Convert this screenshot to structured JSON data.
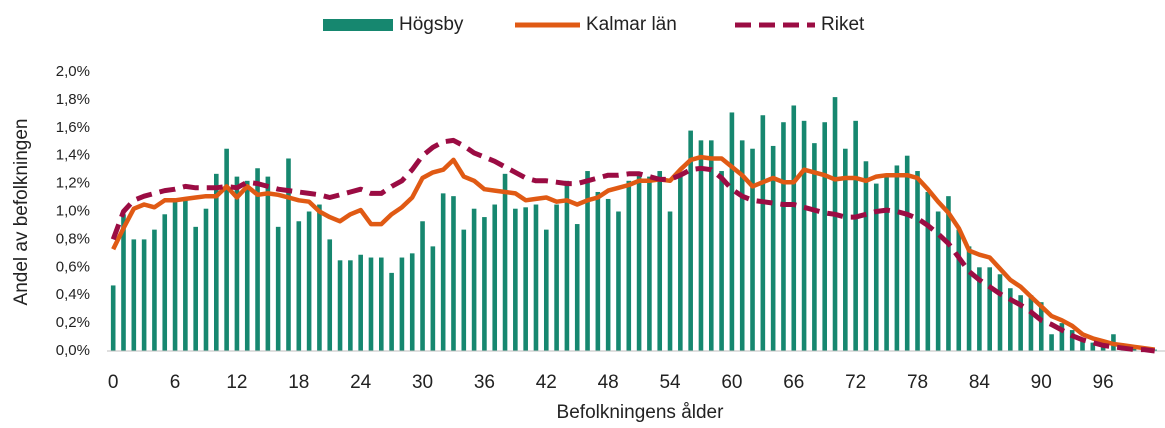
{
  "chart_data": {
    "type": "bar",
    "xlabel": "Befolkningens ålder",
    "ylabel": "Andel av befolkningen",
    "x": [
      0,
      1,
      2,
      3,
      4,
      5,
      6,
      7,
      8,
      9,
      10,
      11,
      12,
      13,
      14,
      15,
      16,
      17,
      18,
      19,
      20,
      21,
      22,
      23,
      24,
      25,
      26,
      27,
      28,
      29,
      30,
      31,
      32,
      33,
      34,
      35,
      36,
      37,
      38,
      39,
      40,
      41,
      42,
      43,
      44,
      45,
      46,
      47,
      48,
      49,
      50,
      51,
      52,
      53,
      54,
      55,
      56,
      57,
      58,
      59,
      60,
      61,
      62,
      63,
      64,
      65,
      66,
      67,
      68,
      69,
      70,
      71,
      72,
      73,
      74,
      75,
      76,
      77,
      78,
      79,
      80,
      81,
      82,
      83,
      84,
      85,
      86,
      87,
      88,
      89,
      90,
      91,
      92,
      93,
      94,
      95,
      96,
      97,
      98,
      99,
      100,
      101
    ],
    "xlim": [
      -0.6,
      102
    ],
    "xticks": [
      0,
      6,
      12,
      18,
      24,
      30,
      36,
      42,
      48,
      54,
      60,
      66,
      72,
      78,
      84,
      90,
      96
    ],
    "ylim": [
      0,
      2.0
    ],
    "yticks": [
      {
        "value": 0,
        "label": "0,0%"
      },
      {
        "value": 0.2,
        "label": "0,2%"
      },
      {
        "value": 0.4,
        "label": "0,4%"
      },
      {
        "value": 0.6,
        "label": "0,6%"
      },
      {
        "value": 0.8,
        "label": "0,8%"
      },
      {
        "value": 1.0,
        "label": "1,0%"
      },
      {
        "value": 1.2,
        "label": "1,2%"
      },
      {
        "value": 1.4,
        "label": "1,4%"
      },
      {
        "value": 1.6,
        "label": "1,6%"
      },
      {
        "value": 1.8,
        "label": "1,8%"
      },
      {
        "value": 2.0,
        "label": "2,0%"
      }
    ],
    "grid": false,
    "legend": "top",
    "series": [
      {
        "name": "Högsby",
        "type": "bar",
        "color": "#16876f",
        "values": [
          0.47,
          0.98,
          0.8,
          0.8,
          0.87,
          0.98,
          1.07,
          1.1,
          0.89,
          1.02,
          1.27,
          1.45,
          1.25,
          1.22,
          1.31,
          1.25,
          0.89,
          1.38,
          0.93,
          1.0,
          1.05,
          0.8,
          0.65,
          0.65,
          0.69,
          0.67,
          0.67,
          0.56,
          0.67,
          0.7,
          0.93,
          0.75,
          1.13,
          1.11,
          0.87,
          1.02,
          0.96,
          1.05,
          1.27,
          1.02,
          1.03,
          1.05,
          0.87,
          1.05,
          1.22,
          0.91,
          1.29,
          1.14,
          1.09,
          1.0,
          1.22,
          1.27,
          1.25,
          1.29,
          1.0,
          1.25,
          1.58,
          1.51,
          1.51,
          1.29,
          1.71,
          1.51,
          1.45,
          1.69,
          1.47,
          1.64,
          1.76,
          1.65,
          1.49,
          1.64,
          1.82,
          1.45,
          1.65,
          1.36,
          1.2,
          1.25,
          1.33,
          1.4,
          1.29,
          1.14,
          1.0,
          1.11,
          0.87,
          0.75,
          0.6,
          0.6,
          0.55,
          0.45,
          0.4,
          0.4,
          0.35,
          0.12,
          0.2,
          0.15,
          0.08,
          0.06,
          0.07,
          0.12,
          0.05,
          0.03,
          0.02,
          0.01
        ]
      },
      {
        "name": "Kalmar län",
        "type": "line",
        "color": "#e05a14",
        "values": [
          0.73,
          0.88,
          1.02,
          1.05,
          1.03,
          1.08,
          1.08,
          1.09,
          1.1,
          1.11,
          1.11,
          1.18,
          1.1,
          1.18,
          1.12,
          1.13,
          1.12,
          1.1,
          1.08,
          1.07,
          1.0,
          0.96,
          0.93,
          0.98,
          1.01,
          0.91,
          0.91,
          0.98,
          1.03,
          1.1,
          1.24,
          1.28,
          1.3,
          1.37,
          1.25,
          1.22,
          1.16,
          1.15,
          1.14,
          1.13,
          1.08,
          1.09,
          1.1,
          1.07,
          1.08,
          1.05,
          1.08,
          1.1,
          1.15,
          1.17,
          1.19,
          1.22,
          1.22,
          1.23,
          1.22,
          1.3,
          1.37,
          1.39,
          1.38,
          1.38,
          1.32,
          1.26,
          1.18,
          1.21,
          1.24,
          1.21,
          1.21,
          1.3,
          1.28,
          1.26,
          1.23,
          1.24,
          1.24,
          1.22,
          1.25,
          1.26,
          1.26,
          1.26,
          1.24,
          1.16,
          1.07,
          0.99,
          0.88,
          0.72,
          0.69,
          0.67,
          0.59,
          0.51,
          0.46,
          0.39,
          0.32,
          0.25,
          0.22,
          0.18,
          0.12,
          0.09,
          0.07,
          0.05,
          0.04,
          0.03,
          0.02,
          0.01
        ]
      },
      {
        "name": "Riket",
        "type": "line",
        "dashed": true,
        "color": "#9b0c43",
        "values": [
          0.8,
          1.0,
          1.08,
          1.11,
          1.13,
          1.15,
          1.16,
          1.18,
          1.17,
          1.17,
          1.17,
          1.18,
          1.17,
          1.21,
          1.2,
          1.18,
          1.16,
          1.15,
          1.14,
          1.13,
          1.12,
          1.1,
          1.12,
          1.14,
          1.16,
          1.13,
          1.13,
          1.18,
          1.22,
          1.3,
          1.4,
          1.46,
          1.5,
          1.51,
          1.47,
          1.42,
          1.39,
          1.36,
          1.32,
          1.28,
          1.24,
          1.22,
          1.22,
          1.21,
          1.2,
          1.2,
          1.22,
          1.24,
          1.26,
          1.26,
          1.27,
          1.27,
          1.25,
          1.23,
          1.23,
          1.26,
          1.3,
          1.31,
          1.3,
          1.24,
          1.16,
          1.11,
          1.08,
          1.07,
          1.06,
          1.05,
          1.05,
          1.03,
          1.01,
          0.99,
          0.98,
          0.96,
          0.96,
          0.98,
          1.0,
          1.01,
          1.0,
          0.98,
          0.95,
          0.9,
          0.84,
          0.77,
          0.67,
          0.57,
          0.51,
          0.46,
          0.41,
          0.37,
          0.33,
          0.28,
          0.22,
          0.19,
          0.15,
          0.11,
          0.08,
          0.06,
          0.04,
          0.03,
          0.02,
          0.01,
          0.01,
          0.0
        ]
      }
    ]
  }
}
